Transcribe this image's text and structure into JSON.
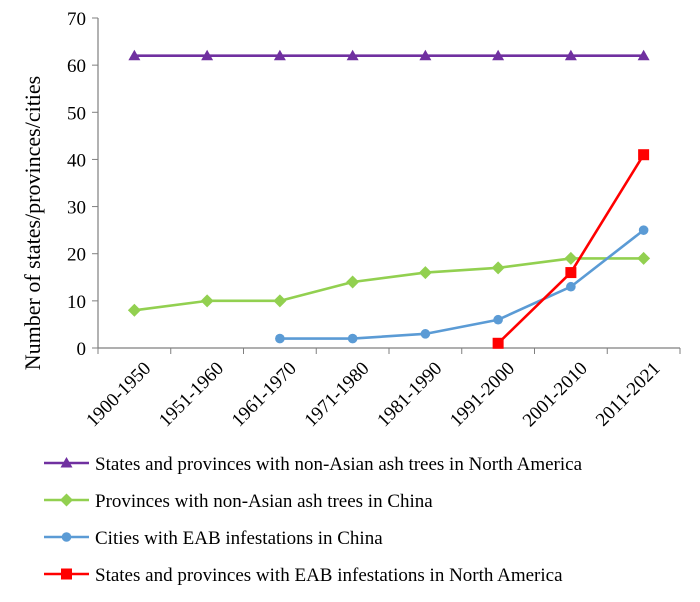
{
  "chart_data": {
    "type": "line",
    "title": "",
    "xlabel": "",
    "ylabel": "Number of states/provinces/cities",
    "categories": [
      "1900-1950",
      "1951-1960",
      "1961-1970",
      "1971-1980",
      "1981-1990",
      "1991-2000",
      "2001-2010",
      "2011-2021"
    ],
    "ylim": [
      0,
      70
    ],
    "yticks": [
      "0",
      "10",
      "20",
      "30",
      "40",
      "50",
      "60",
      "70"
    ],
    "grid": false,
    "legend_position": "bottom",
    "series": [
      {
        "name": "States and provinces with non-Asian ash trees in North America",
        "color": "#7030A0",
        "marker": "triangle",
        "values": [
          62,
          62,
          62,
          62,
          62,
          62,
          62,
          62
        ]
      },
      {
        "name": "Provinces with non-Asian ash trees in China",
        "color": "#92D050",
        "marker": "diamond",
        "values": [
          8,
          10,
          10,
          14,
          16,
          17,
          19,
          19
        ]
      },
      {
        "name": "Cities with EAB infestations in China",
        "color": "#5B9BD5",
        "marker": "circle",
        "values": [
          null,
          null,
          2,
          2,
          3,
          6,
          13,
          25
        ]
      },
      {
        "name": "States and provinces with EAB infestations in North America",
        "color": "#FF0000",
        "marker": "square",
        "values": [
          null,
          null,
          null,
          null,
          null,
          1,
          16,
          41
        ]
      }
    ]
  }
}
